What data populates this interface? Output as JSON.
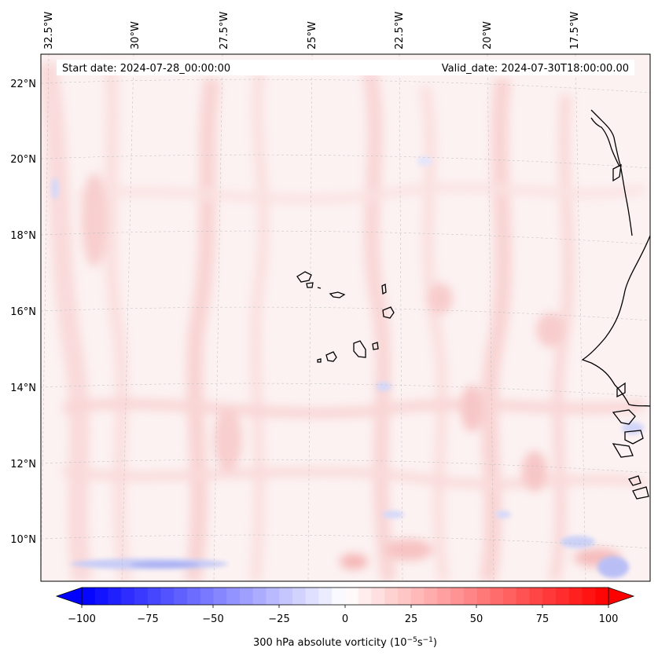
{
  "map": {
    "start_date": "Start date: 2024-07-28_00:00:00",
    "valid_date": "Valid_date: 2024-07-30T18:00:00.00",
    "lon_labels": [
      "32.5°W",
      "30°W",
      "27.5°W",
      "25°W",
      "22.5°W",
      "20°W",
      "17.5°W"
    ],
    "lat_labels": [
      "22°N",
      "20°N",
      "18°N",
      "16°N",
      "14°N",
      "12°N",
      "10°N"
    ]
  },
  "colorbar": {
    "label_prefix": "300 hPa absolute vorticity (10",
    "label_exp1": "−5",
    "label_mid": "s",
    "label_exp2": "−1",
    "label_suffix": ")",
    "ticks": [
      "−100",
      "−75",
      "−50",
      "−25",
      "0",
      "25",
      "50",
      "75",
      "100"
    ],
    "min": -100,
    "max": 100,
    "levels": 40,
    "colors": {
      "low": "#0000ff",
      "mid": "#ffffff",
      "high": "#ff0000"
    }
  },
  "colors": {
    "field_base": "#fcf2f2",
    "field_light_red": "#fbdede",
    "field_mid_red": "#f8c8c8",
    "field_blue": "#dde0fb",
    "coastline": "#000000",
    "grid": "#bbbbbb"
  }
}
